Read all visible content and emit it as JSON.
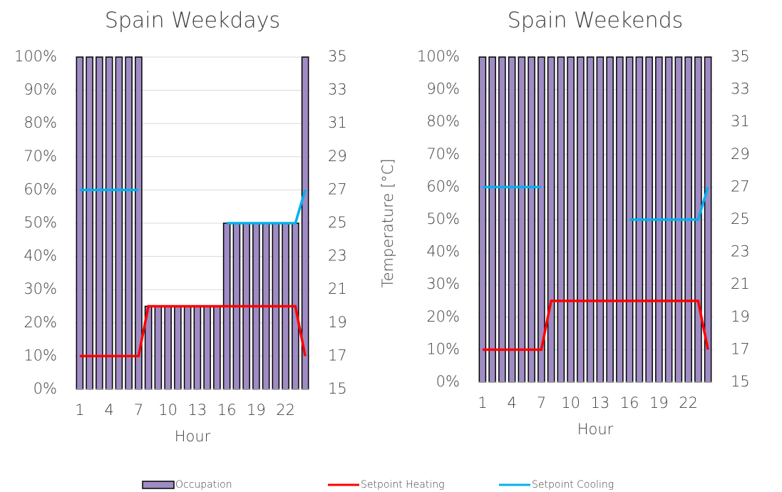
{
  "chart_data": [
    {
      "type": "bar_line",
      "title": "Spain Weekdays",
      "xlabel": "Hour",
      "y2label": "Temperature [°C]",
      "categories": [
        1,
        null,
        null,
        4,
        null,
        null,
        7,
        null,
        null,
        10,
        null,
        null,
        13,
        null,
        null,
        16,
        null,
        null,
        19,
        null,
        null,
        22,
        null,
        null
      ],
      "series": [
        {
          "name": "Occupation",
          "type": "bar",
          "color": "#a08cc4",
          "values": [
            100,
            100,
            100,
            100,
            100,
            100,
            100,
            25,
            25,
            25,
            25,
            25,
            25,
            25,
            25,
            50,
            50,
            50,
            50,
            50,
            50,
            50,
            50,
            100
          ]
        },
        {
          "name": "Setpoint Heating",
          "type": "line",
          "axis": "y2",
          "color": "#ff0000",
          "values": [
            17,
            17,
            17,
            17,
            17,
            17,
            17,
            20,
            20,
            20,
            20,
            20,
            20,
            20,
            20,
            20,
            20,
            20,
            20,
            20,
            20,
            20,
            20,
            17
          ]
        },
        {
          "name": "Setpoint Cooling",
          "type": "line",
          "axis": "y2",
          "color": "#00b0f0",
          "values": [
            27,
            27,
            27,
            27,
            27,
            27,
            27,
            null,
            null,
            null,
            null,
            null,
            null,
            null,
            null,
            25,
            25,
            25,
            25,
            25,
            25,
            25,
            25,
            27
          ]
        }
      ],
      "ylim": [
        0,
        100
      ],
      "yticks": [
        {
          "value": 0,
          "label": "0%"
        },
        {
          "value": 10,
          "label": "10%"
        },
        {
          "value": 20,
          "label": "20%"
        },
        {
          "value": 30,
          "label": "30%"
        },
        {
          "value": 40,
          "label": "40%"
        },
        {
          "value": 50,
          "label": "50%"
        },
        {
          "value": 60,
          "label": "60%"
        },
        {
          "value": 70,
          "label": "70%"
        },
        {
          "value": 80,
          "label": "80%"
        },
        {
          "value": 90,
          "label": "90%"
        },
        {
          "value": 100,
          "label": "100%"
        }
      ],
      "y2lim": [
        15,
        35
      ],
      "y2ticks": [
        15,
        17,
        19,
        21,
        23,
        25,
        27,
        29,
        31,
        33,
        35
      ],
      "grid": true
    },
    {
      "type": "bar_line",
      "title": "Spain Weekends",
      "xlabel": "Hour",
      "y2label": "Temperature [°C]",
      "categories": [
        1,
        null,
        null,
        4,
        null,
        null,
        7,
        null,
        null,
        10,
        null,
        null,
        13,
        null,
        null,
        16,
        null,
        null,
        19,
        null,
        null,
        22,
        null,
        null
      ],
      "series": [
        {
          "type": "bar",
          "color": "#a08cc4",
          "values": [
            100,
            100,
            100,
            100,
            100,
            100,
            100,
            100,
            100,
            100,
            100,
            100,
            100,
            100,
            100,
            100,
            100,
            100,
            100,
            100,
            100,
            100,
            100,
            100
          ]
        },
        {
          "type": "line",
          "axis": "y2",
          "color": "#ff0000",
          "values": [
            17,
            17,
            17,
            17,
            17,
            17,
            17,
            20,
            20,
            20,
            20,
            20,
            20,
            20,
            20,
            20,
            20,
            20,
            20,
            20,
            20,
            20,
            20,
            17
          ]
        },
        {
          "type": "line",
          "axis": "y2",
          "color": "#00b0f0",
          "values": [
            27,
            27,
            27,
            27,
            27,
            27,
            27,
            null,
            null,
            null,
            null,
            null,
            null,
            null,
            null,
            25,
            25,
            25,
            25,
            25,
            25,
            25,
            25,
            27
          ]
        }
      ],
      "ylim": [
        0,
        100
      ],
      "yticks": [
        {
          "value": 0,
          "label": "0%"
        },
        {
          "value": 10,
          "label": "10%"
        },
        {
          "value": 20,
          "label": "20%"
        },
        {
          "value": 30,
          "label": "30%"
        },
        {
          "value": 40,
          "label": "40%"
        },
        {
          "value": 50,
          "label": "50%"
        },
        {
          "value": 60,
          "label": "60%"
        },
        {
          "value": 70,
          "label": "70%"
        },
        {
          "value": 80,
          "label": "80%"
        },
        {
          "value": 90,
          "label": "90%"
        },
        {
          "value": 100,
          "label": "100%"
        }
      ],
      "y2lim": [
        15,
        35
      ],
      "y2ticks": [
        15,
        17,
        19,
        21,
        23,
        25,
        27,
        29,
        31,
        33,
        35
      ],
      "grid": true
    }
  ]
}
